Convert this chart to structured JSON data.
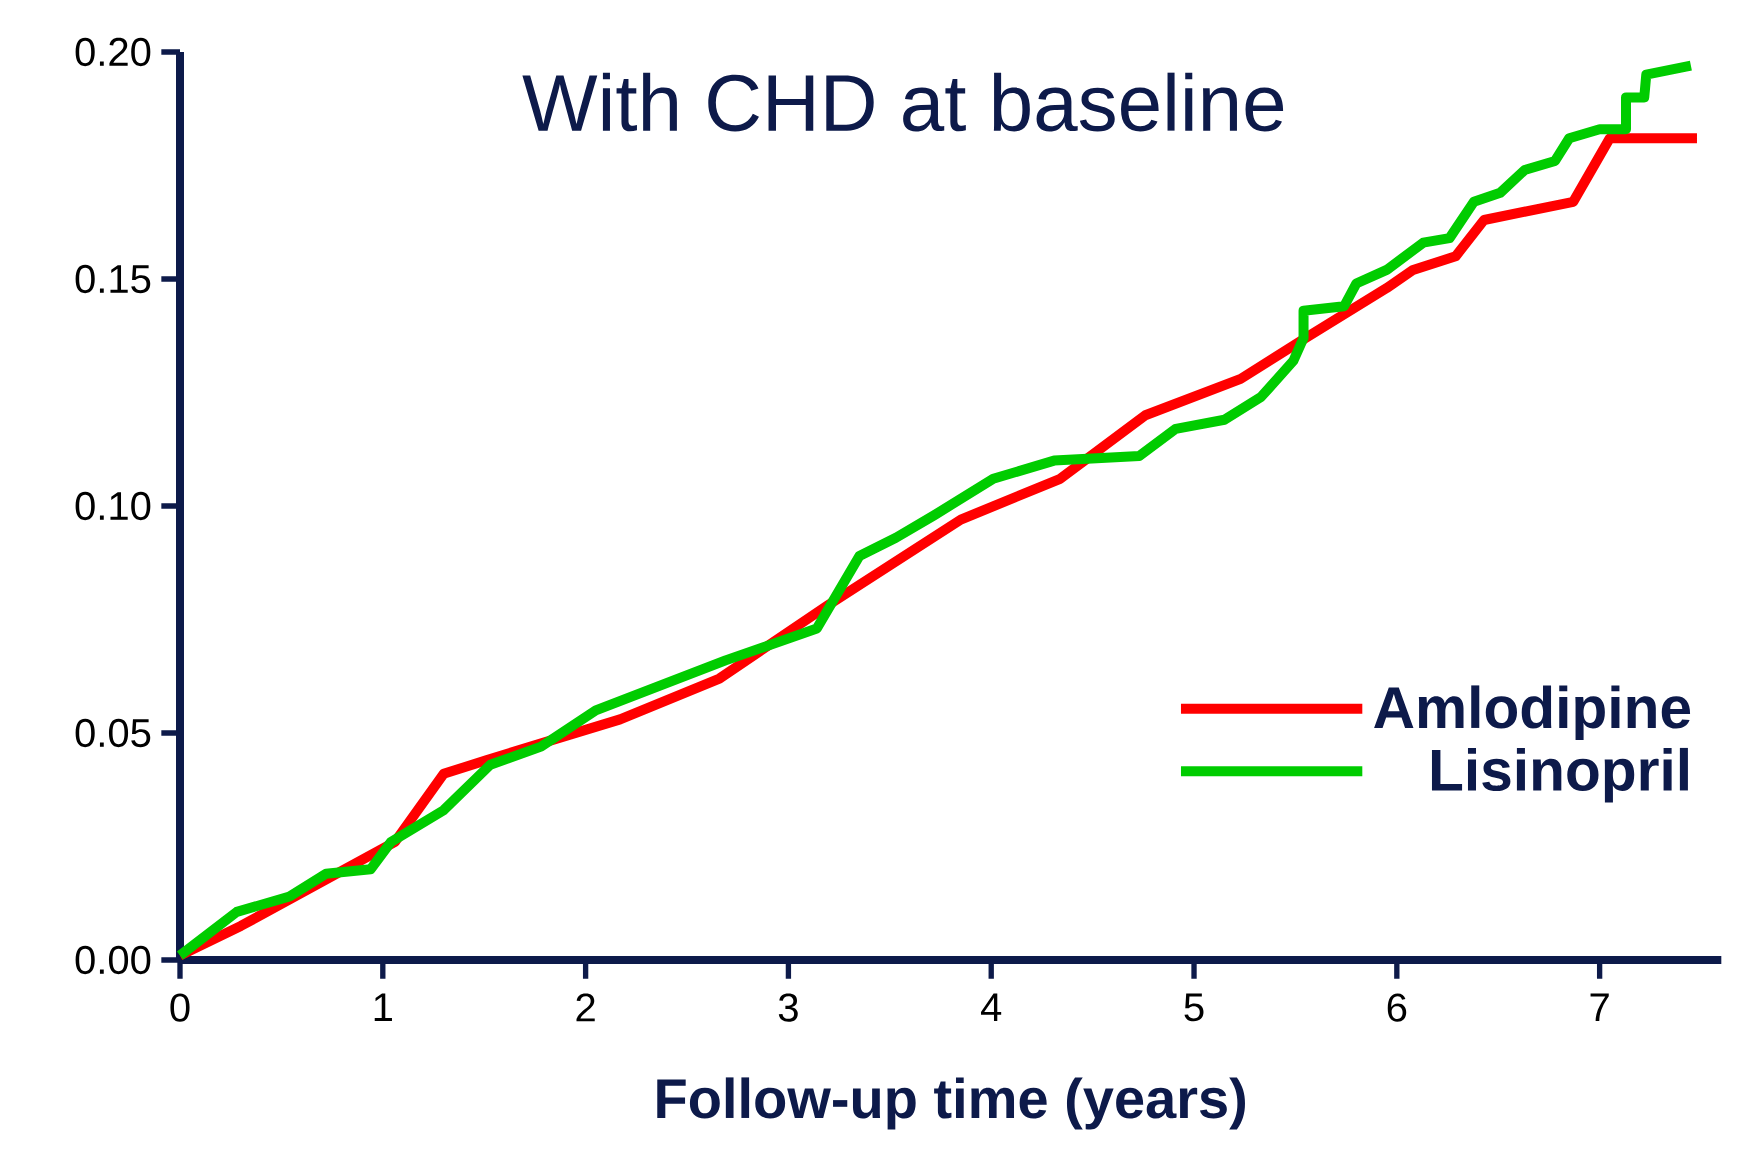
{
  "chart_data": {
    "type": "line",
    "title": "With CHD at baseline",
    "xlabel": "Follow-up time (years)",
    "xlim": [
      0,
      7.6
    ],
    "ylim": [
      0,
      0.2
    ],
    "xticks": [
      0,
      1,
      2,
      3,
      4,
      5,
      6,
      7
    ],
    "yticks": [
      {
        "value": 0,
        "label": "0.00"
      },
      {
        "value": 0.05,
        "label": "0.05"
      },
      {
        "value": 0.1,
        "label": "0.10"
      },
      {
        "value": 0.15,
        "label": "0.15"
      },
      {
        "value": 0.2,
        "label": "0.20"
      }
    ],
    "legend": "bottom right",
    "grid": false,
    "marker": "none",
    "line_style": "solid",
    "series": [
      {
        "name": "Amlodipine",
        "color": "#ff0000",
        "x": [
          0,
          0.3,
          1.06,
          1.3,
          1.51,
          2.17,
          2.66,
          3.19,
          3.85,
          4.34,
          4.76,
          5.23,
          5.55,
          5.95,
          6.08,
          6.29,
          6.43,
          6.87,
          7.05,
          7.48
        ],
        "values": [
          0.001,
          0.0075,
          0.026,
          0.041,
          0.044,
          0.053,
          0.062,
          0.078,
          0.097,
          0.106,
          0.12,
          0.128,
          0.137,
          0.148,
          0.152,
          0.155,
          0.163,
          0.167,
          0.181,
          0.181
        ]
      },
      {
        "name": "Lisinopril",
        "color": "#00cc00",
        "x": [
          0,
          0.28,
          0.54,
          0.72,
          0.94,
          1.04,
          1.3,
          1.53,
          1.78,
          2.05,
          2.69,
          3.14,
          3.35,
          3.53,
          3.72,
          4.01,
          4.31,
          4.73,
          4.91,
          5.15,
          5.33,
          5.49,
          5.54,
          5.54,
          5.74,
          5.8,
          5.95,
          6.13,
          6.26,
          6.38,
          6.51,
          6.63,
          6.78,
          6.85,
          7.0,
          7.13,
          7.13,
          7.22,
          7.23,
          7.45
        ],
        "values": [
          0.001,
          0.0106,
          0.014,
          0.019,
          0.02,
          0.026,
          0.033,
          0.043,
          0.047,
          0.055,
          0.066,
          0.073,
          0.089,
          0.093,
          0.098,
          0.106,
          0.11,
          0.111,
          0.117,
          0.119,
          0.124,
          0.132,
          0.137,
          0.143,
          0.144,
          0.149,
          0.152,
          0.158,
          0.159,
          0.167,
          0.169,
          0.174,
          0.176,
          0.181,
          0.183,
          0.183,
          0.19,
          0.19,
          0.195,
          0.197
        ]
      }
    ]
  }
}
